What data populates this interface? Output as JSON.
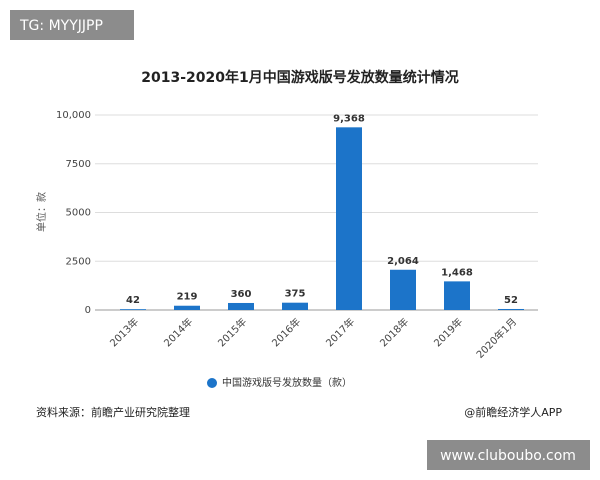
{
  "chart_data": {
    "type": "bar",
    "title": "2013-2020年1月中国游戏版号发放数量统计情况",
    "y_label": "单位：款",
    "categories": [
      "2013年",
      "2014年",
      "2015年",
      "2016年",
      "2017年",
      "2018年",
      "2019年",
      "2020年1月"
    ],
    "series": [
      {
        "name": "中国游戏版号发放数量（款）",
        "color": "#1c74c9",
        "values": [
          42,
          219,
          360,
          375,
          9368,
          2064,
          1468,
          52
        ],
        "value_labels": [
          "42",
          "219",
          "360",
          "375",
          "9,368",
          "2,064",
          "1,468",
          "52"
        ]
      }
    ],
    "ylim": [
      0,
      10000
    ],
    "yticks": [
      0,
      2500,
      5000,
      7500,
      {
        "value": 10000,
        "label": "10,000"
      }
    ],
    "grid": true,
    "legend": "bottom",
    "source": "资料来源：前瞻产业研究院整理",
    "credit": "@前瞻经济学人APP"
  },
  "overlay": {
    "top_left": "TG: MYYJJPP",
    "bottom_right": "www.cluboubo.com"
  }
}
